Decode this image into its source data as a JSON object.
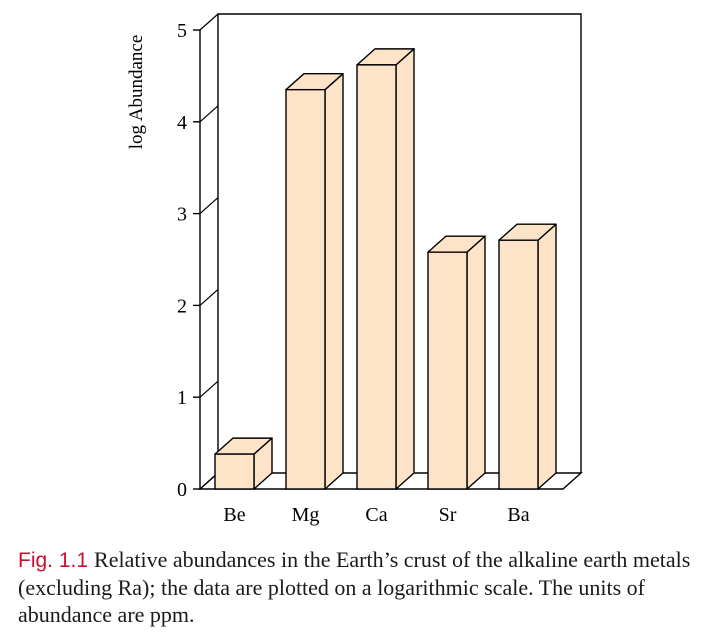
{
  "chart_data": {
    "type": "bar",
    "categories": [
      "Be",
      "Mg",
      "Ca",
      "Sr",
      "Ba"
    ],
    "values": [
      0.38,
      4.35,
      4.62,
      2.58,
      2.71
    ],
    "ylabel": "log Abundance",
    "xlabel": "",
    "title": "",
    "ylim": [
      0,
      5
    ],
    "yticks": [
      "0",
      "1",
      "2",
      "3",
      "4",
      "5"
    ],
    "grid": false,
    "bar_color": "#fde4c9",
    "edge_color": "#000000"
  },
  "caption": {
    "label": "Fig. 1.1",
    "text": "Relative abundances in the Earth’s crust of the alkaline earth metals (excluding Ra); the data are plotted on a logarithmic scale. The units of abundance are ppm."
  }
}
